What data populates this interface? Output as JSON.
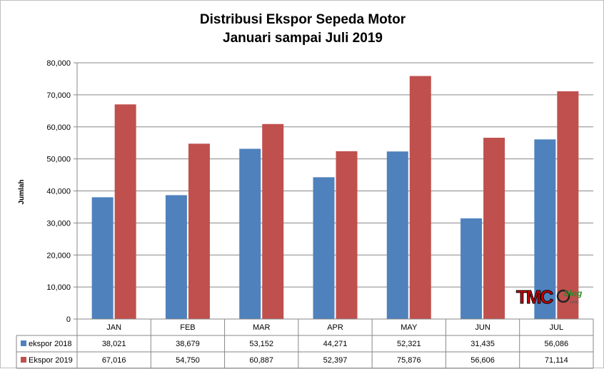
{
  "chart_data": {
    "type": "bar",
    "title": [
      "Distribusi Ekspor Sepeda Motor",
      "Januari sampai Juli 2019"
    ],
    "xlabel": "",
    "ylabel": "Jumlah",
    "ylim": [
      0,
      80000
    ],
    "yticks": [
      "0",
      "10,000",
      "20,000",
      "30,000",
      "40,000",
      "50,000",
      "60,000",
      "70,000",
      "80,000"
    ],
    "categories": [
      "JAN",
      "FEB",
      "MAR",
      "APR",
      "MAY",
      "JUN",
      "JUL"
    ],
    "series": [
      {
        "name": "ekspor 2018",
        "color": "#4f81bd",
        "values": [
          38021,
          38679,
          53152,
          44271,
          52321,
          31435,
          56086
        ],
        "labels": [
          "38,021",
          "38,679",
          "53,152",
          "44,271",
          "52,321",
          "31,435",
          "56,086"
        ]
      },
      {
        "name": "Ekspor 2019",
        "color": "#c0504d",
        "values": [
          67016,
          54750,
          60887,
          52397,
          75876,
          56606,
          71114
        ],
        "labels": [
          "67,016",
          "54,750",
          "60,887",
          "52,397",
          "75,876",
          "56,606",
          "71,114"
        ]
      }
    ],
    "grid": true,
    "legend": "data-table"
  },
  "watermark": {
    "main": "TMC",
    "sub": "blog",
    "tiny": ".com"
  }
}
